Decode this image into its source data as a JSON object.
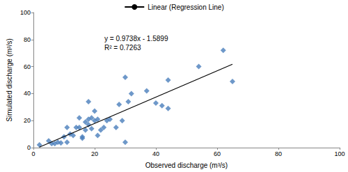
{
  "chart_data": {
    "type": "scatter",
    "x_label": "Observed discharge (m³/s)",
    "y_label": "Simulated discharge (m³/s)",
    "xlim": [
      0,
      100
    ],
    "ylim": [
      0,
      100
    ],
    "xticks": [
      0,
      20,
      40,
      60,
      80,
      100
    ],
    "yticks": [
      0,
      20,
      40,
      60,
      80,
      100
    ],
    "grid": false,
    "legend": "top",
    "annotations": [
      "y = 0.9738x - 1.5899",
      "R² = 0.7263"
    ],
    "series": [
      {
        "type": "scatter",
        "color": "#4a7ebb",
        "marker": "diamond",
        "x": [
          2,
          5,
          6,
          7,
          8,
          9,
          10,
          11,
          11,
          12,
          13,
          14,
          15,
          15,
          16,
          16,
          17,
          17,
          18,
          18,
          18,
          19,
          19,
          20,
          20,
          21,
          21,
          22,
          23,
          24,
          25,
          27,
          28,
          29,
          30,
          30,
          31,
          32,
          37,
          40,
          42,
          44,
          44,
          54,
          62,
          65
        ],
        "values": [
          2,
          5,
          3,
          3,
          4,
          3.5,
          8,
          15,
          4,
          10,
          9,
          15,
          15,
          22,
          8,
          7,
          13,
          19,
          17,
          21,
          34,
          14,
          22,
          20,
          27,
          21,
          9,
          13,
          15,
          20,
          21,
          15,
          32,
          20,
          52,
          4,
          34,
          40,
          42,
          33,
          31,
          29,
          50,
          60,
          72,
          49
        ]
      },
      {
        "name": "Linear (Regression Line)",
        "type": "line",
        "color": "#000000",
        "line_style": "solid",
        "x": [
          2,
          65
        ],
        "values": [
          0.36,
          61.71
        ]
      }
    ]
  }
}
